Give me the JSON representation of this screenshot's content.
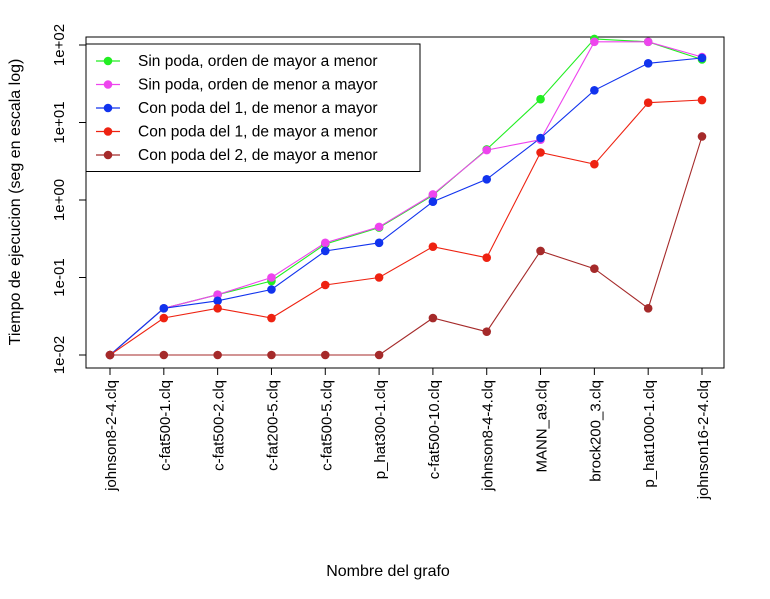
{
  "chart_data": {
    "type": "line",
    "title": "",
    "xlabel": "Nombre del grafo",
    "ylabel": "Tiempo de ejecucion (seg en escala log)",
    "yscale": "log",
    "ylim": [
      0.01,
      100
    ],
    "yticks": [
      {
        "value": 0.01,
        "label": "1e-02"
      },
      {
        "value": 0.1,
        "label": "1e-01"
      },
      {
        "value": 1,
        "label": "1e+00"
      },
      {
        "value": 10,
        "label": "1e+01"
      },
      {
        "value": 100,
        "label": "1e+02"
      }
    ],
    "categories": [
      "johnson8-2-4.clq",
      "c-fat500-1.clq",
      "c-fat500-2.clq",
      "c-fat200-5.clq",
      "c-fat500-5.clq",
      "p_hat300-1.clq",
      "c-fat500-10.clq",
      "johnson8-4-4.clq",
      "MANN_a9.clq",
      "brock200_3.clq",
      "p_hat1000-1.clq",
      "johnson16-2-4.clq"
    ],
    "legend_position": "top-left",
    "series": [
      {
        "name": "Sin poda, orden de mayor a menor",
        "color": "#22ee22",
        "values": [
          0.01,
          0.04,
          0.06,
          0.09,
          0.27,
          0.44,
          1.15,
          4.5,
          20,
          120,
          110,
          65
        ]
      },
      {
        "name": "Sin poda, orden de menor a mayor",
        "color": "#ee44ee",
        "values": [
          0.01,
          0.04,
          0.06,
          0.1,
          0.28,
          0.45,
          1.18,
          4.4,
          6.0,
          110,
          110,
          70
        ]
      },
      {
        "name": "Con poda del 1, de menor a mayor",
        "color": "#1133ee",
        "values": [
          0.01,
          0.04,
          0.05,
          0.07,
          0.22,
          0.28,
          0.95,
          1.85,
          6.3,
          26,
          58,
          68
        ]
      },
      {
        "name": "Con poda del 1, de mayor a menor",
        "color": "#ee2211",
        "values": [
          0.01,
          0.03,
          0.04,
          0.03,
          0.08,
          0.1,
          0.25,
          0.18,
          4.1,
          2.9,
          18,
          19.5
        ]
      },
      {
        "name": "Con poda del 2, de mayor a menor",
        "color": "#a52a2a",
        "values": [
          0.01,
          0.01,
          0.01,
          0.01,
          0.01,
          0.01,
          0.03,
          0.02,
          0.22,
          0.13,
          0.04,
          6.6
        ]
      }
    ]
  }
}
